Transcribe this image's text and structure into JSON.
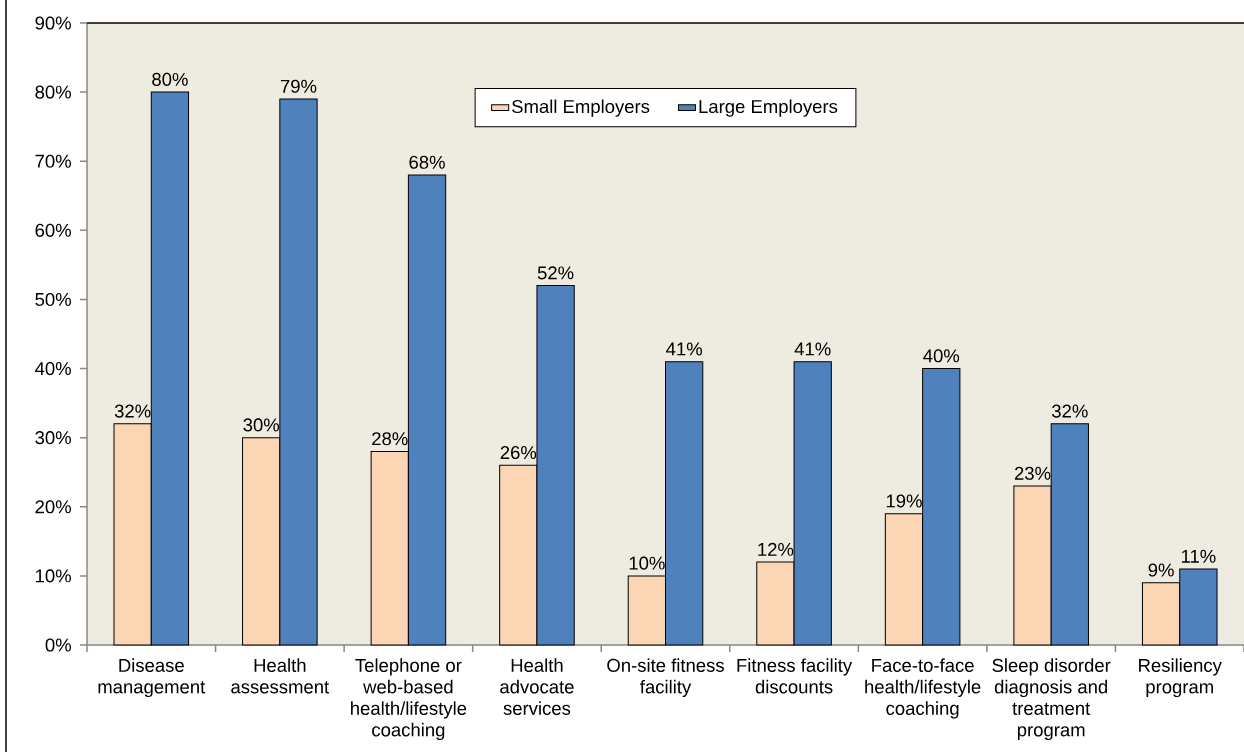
{
  "chart_data": {
    "type": "bar",
    "categories": [
      "Disease management",
      "Health assessment",
      "Telephone or web-based health/lifestyle coaching",
      "Health advocate services",
      "On-site fitness facility",
      "Fitness facility discounts",
      "Face-to-face health/lifestyle coaching",
      "Sleep disorder diagnosis and treatment program",
      "Resiliency program"
    ],
    "series": [
      {
        "name": "Small Employers",
        "color": "#fcd5b5",
        "values": [
          32,
          30,
          28,
          26,
          10,
          12,
          19,
          23,
          9
        ],
        "value_labels": [
          "32%",
          "30%",
          "28%",
          "26%",
          "10%",
          "12%",
          "19%",
          "23%",
          "9%"
        ]
      },
      {
        "name": "Large Employers",
        "color": "#4f81bd",
        "values": [
          80,
          79,
          68,
          52,
          41,
          41,
          40,
          32,
          11
        ],
        "value_labels": [
          "80%",
          "79%",
          "68%",
          "52%",
          "41%",
          "41%",
          "40%",
          "32%",
          "11%"
        ]
      }
    ],
    "ylim": [
      0,
      90
    ],
    "yticks": [
      {
        "value": 0,
        "label": "0%"
      },
      {
        "value": 10,
        "label": "10%"
      },
      {
        "value": 20,
        "label": "20%"
      },
      {
        "value": 30,
        "label": "30%"
      },
      {
        "value": 40,
        "label": "40%"
      },
      {
        "value": 50,
        "label": "50%"
      },
      {
        "value": 60,
        "label": "60%"
      },
      {
        "value": 70,
        "label": "70%"
      },
      {
        "value": 80,
        "label": "80%"
      },
      {
        "value": 90,
        "label": "90%"
      }
    ],
    "legend": "top"
  }
}
